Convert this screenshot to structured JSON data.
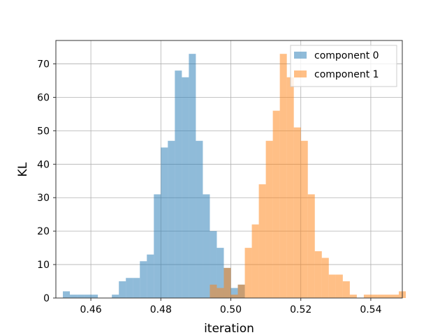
{
  "chart_data": {
    "type": "histogram",
    "xlabel": "iteration",
    "ylabel": "KL",
    "xlim": [
      0.45,
      0.549
    ],
    "ylim": [
      0,
      77
    ],
    "x_ticks": [
      0.46,
      0.48,
      0.5,
      0.52,
      0.54
    ],
    "x_tick_labels": [
      "0.46",
      "0.48",
      "0.50",
      "0.52",
      "0.54"
    ],
    "y_ticks": [
      0,
      10,
      20,
      30,
      40,
      50,
      60,
      70
    ],
    "y_tick_labels": [
      "0",
      "10",
      "20",
      "30",
      "40",
      "50",
      "60",
      "70"
    ],
    "grid": true,
    "legend_position": "upper right",
    "series": [
      {
        "name": "component 0",
        "color": "#1f77b4",
        "alpha": 0.5,
        "bin_start": 0.452,
        "bin_width": 0.002,
        "counts": [
          2,
          1,
          1,
          1,
          1,
          0,
          0,
          1,
          5,
          6,
          6,
          11,
          13,
          31,
          45,
          47,
          68,
          66,
          73,
          47,
          31,
          20,
          15,
          9,
          3,
          4
        ]
      },
      {
        "name": "component 1",
        "color": "#ff7f0e",
        "alpha": 0.5,
        "bin_start": 0.494,
        "bin_width": 0.002,
        "counts": [
          4,
          3,
          9,
          1,
          4,
          15,
          22,
          34,
          47,
          56,
          73,
          66,
          51,
          47,
          31,
          14,
          12,
          7,
          7,
          5,
          1,
          0,
          1,
          1,
          1,
          1,
          1,
          2
        ]
      }
    ]
  }
}
